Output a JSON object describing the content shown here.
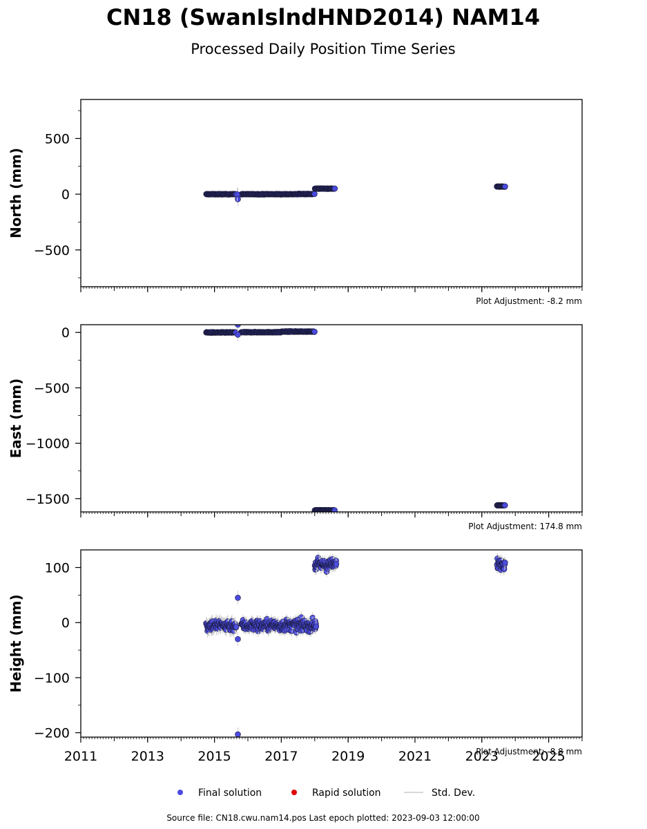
{
  "title": "CN18 (SwanIslndHND2014) NAM14",
  "subtitle": "Processed Daily Position Time Series",
  "colors": {
    "final": "#4a4ae0",
    "rapid": "#e00000",
    "stddev": "#cccccc",
    "edge": "#1a1a3a"
  },
  "legend": {
    "final": "Final solution",
    "rapid": "Rapid solution",
    "std": "Std. Dev."
  },
  "footer": "Source file: CN18.cwu.nam14.pos  Last epoch plotted: 2023-09-03 12:00:00",
  "chart_data": [
    {
      "type": "scatter",
      "ylabel": "North (mm)",
      "adjustment": "Plot Adjustment: -8.2 mm",
      "xlim": [
        2011,
        2026
      ],
      "ylim": [
        -830,
        850
      ],
      "yticks": [
        -500,
        0,
        500
      ],
      "yticklabels": [
        "−500",
        "0",
        "500"
      ],
      "xticks": [
        2011,
        2013,
        2015,
        2017,
        2019,
        2021,
        2023,
        2025
      ],
      "show_xticklabels": false,
      "segments": [
        {
          "x": [
            2014.75,
            2015.65
          ],
          "y": 0,
          "spread": 4,
          "err": 3
        },
        {
          "x": [
            2015.8,
            2017.5
          ],
          "y": 0,
          "spread": 4,
          "err": 3
        },
        {
          "x": [
            2017.5,
            2018.0
          ],
          "y": 2,
          "spread": 4,
          "err": 3
        },
        {
          "x": [
            2018.0,
            2018.6
          ],
          "y": 50,
          "spread": 4,
          "err": 3
        },
        {
          "x": [
            2023.45,
            2023.7
          ],
          "y": 68,
          "spread": 3,
          "err": 3
        }
      ],
      "outliers": [
        {
          "x": 2015.7,
          "y": -10
        },
        {
          "x": 2015.7,
          "y": -45
        },
        {
          "x": 2015.68,
          "y": 0
        }
      ]
    },
    {
      "type": "scatter",
      "ylabel": "East (mm)",
      "adjustment": "Plot Adjustment: 174.8 mm",
      "xlim": [
        2011,
        2026
      ],
      "ylim": [
        -1620,
        70
      ],
      "yticks": [
        -1500,
        -1000,
        -500,
        0
      ],
      "yticklabels": [
        "−1500",
        "−1000",
        "−500",
        "0"
      ],
      "xticks": [
        2011,
        2013,
        2015,
        2017,
        2019,
        2021,
        2023,
        2025
      ],
      "show_xticklabels": false,
      "segments": [
        {
          "x": [
            2014.75,
            2015.65
          ],
          "y": 0,
          "spread": 5,
          "err": 3
        },
        {
          "x": [
            2015.8,
            2017.0
          ],
          "y": 2,
          "spread": 5,
          "err": 3
        },
        {
          "x": [
            2017.0,
            2018.0
          ],
          "y": 8,
          "spread": 5,
          "err": 3
        },
        {
          "x": [
            2018.0,
            2018.6
          ],
          "y": -1605,
          "spread": 3,
          "err": 3
        },
        {
          "x": [
            2023.45,
            2023.7
          ],
          "y": -1560,
          "spread": 3,
          "err": 3
        }
      ],
      "outliers": [
        {
          "x": 2015.7,
          "y": 70
        },
        {
          "x": 2015.7,
          "y": -20
        }
      ]
    },
    {
      "type": "scatter",
      "ylabel": "Height (mm)",
      "adjustment": "Plot Adjustment: -8.8 mm",
      "xlim": [
        2011,
        2026
      ],
      "ylim": [
        -208,
        132
      ],
      "yticks": [
        -200,
        -100,
        0,
        100
      ],
      "yticklabels": [
        "−200",
        "−100",
        "0",
        "100"
      ],
      "xticks": [
        2011,
        2013,
        2015,
        2017,
        2019,
        2021,
        2023,
        2025
      ],
      "xticklabels": [
        "2011",
        "2013",
        "2015",
        "2017",
        "2019",
        "2021",
        "2023",
        "2025"
      ],
      "show_xticklabels": true,
      "segments": [
        {
          "x": [
            2014.75,
            2015.65
          ],
          "y": -5,
          "spread": 16,
          "err": 12
        },
        {
          "x": [
            2015.8,
            2018.05
          ],
          "y": -5,
          "spread": 16,
          "err": 10
        },
        {
          "x": [
            2018.0,
            2018.65
          ],
          "y": 105,
          "spread": 16,
          "err": 10
        },
        {
          "x": [
            2023.45,
            2023.7
          ],
          "y": 108,
          "spread": 16,
          "err": 10
        }
      ],
      "outliers": [
        {
          "x": 2015.7,
          "y": 45
        },
        {
          "x": 2015.7,
          "y": -30
        },
        {
          "x": 2015.7,
          "y": -203
        }
      ]
    }
  ]
}
